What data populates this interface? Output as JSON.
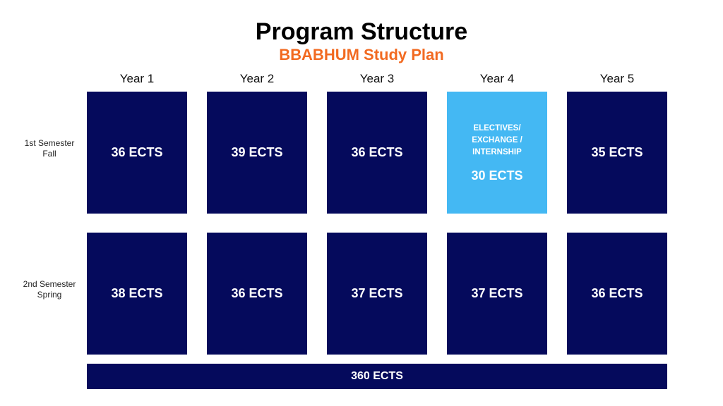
{
  "header": {
    "title": "Program Structure",
    "subtitle": "BBABHUM Study Plan"
  },
  "columns": [
    "Year 1",
    "Year 2",
    "Year 3",
    "Year 4",
    "Year 5"
  ],
  "rows": [
    {
      "label": [
        "1st Semester",
        "Fall"
      ],
      "cells": [
        {
          "text": "36 ECTS"
        },
        {
          "text": "39 ECTS"
        },
        {
          "text": "36 ECTS"
        },
        {
          "note": [
            "ELECTIVES/",
            "EXCHANGE /",
            "INTERNSHIP"
          ],
          "text": "30 ECTS"
        },
        {
          "text": "35 ECTS"
        }
      ]
    },
    {
      "label": [
        "2nd Semester",
        "Spring"
      ],
      "cells": [
        {
          "text": "38 ECTS"
        },
        {
          "text": "36 ECTS"
        },
        {
          "text": "37 ECTS"
        },
        {
          "text": "37 ECTS"
        },
        {
          "text": "36 ECTS"
        }
      ]
    }
  ],
  "total": "360 ECTS"
}
